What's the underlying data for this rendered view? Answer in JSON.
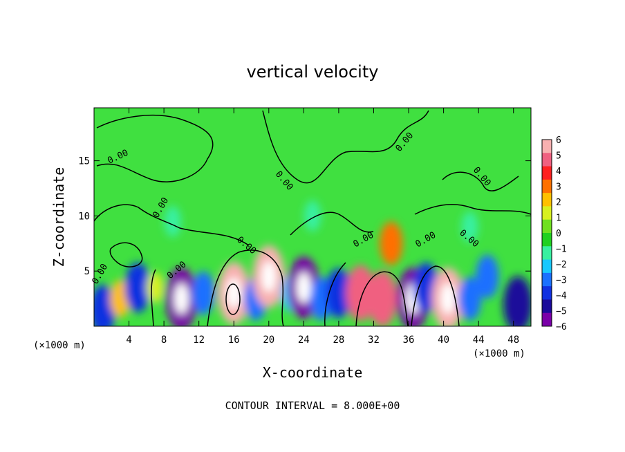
{
  "chart_data": {
    "type": "heatmap",
    "title": "vertical velocity",
    "xlabel": "X-coordinate",
    "ylabel": "Z-coordinate",
    "x_unit_left": "(×1000 m)",
    "x_unit_right": "(×1000 m)",
    "xlim": [
      0,
      50
    ],
    "ylim": [
      0,
      19.8
    ],
    "x_ticks": [
      "4",
      "8",
      "12",
      "16",
      "20",
      "24",
      "28",
      "32",
      "36",
      "40",
      "44",
      "48"
    ],
    "y_ticks": [
      "5",
      "10",
      "15"
    ],
    "colorbar": {
      "ticks": [
        "6",
        "5",
        "4",
        "3",
        "2",
        "1",
        "0",
        "−1",
        "−2",
        "−3",
        "−4",
        "−5",
        "−6"
      ],
      "range": [
        -6,
        6
      ],
      "colors": [
        "#7a00a8",
        "#1a0a9a",
        "#1030e0",
        "#1a70ff",
        "#18c8ff",
        "#38f0a0",
        "#20d020",
        "#70e020",
        "#d8f020",
        "#ffc000",
        "#ff7000",
        "#ff2020",
        "#f06080",
        "#f8b0b0"
      ]
    },
    "contour_level_label": "0.00",
    "contour_interval_text": "CONTOUR INTERVAL = 8.000E+00",
    "cells": [
      {
        "x": 1,
        "z": 1.5,
        "w": -4
      },
      {
        "x": 3,
        "z": 2.5,
        "w": 2
      },
      {
        "x": 5,
        "z": 3.5,
        "w": -4
      },
      {
        "x": 7,
        "z": 3.5,
        "w": 1
      },
      {
        "x": 10,
        "z": 2.5,
        "w": -6
      },
      {
        "x": 12.5,
        "z": 3,
        "w": -3
      },
      {
        "x": 16,
        "z": 3,
        "w": 6
      },
      {
        "x": 18.5,
        "z": 2.5,
        "w": -3
      },
      {
        "x": 20,
        "z": 4.5,
        "w": 6
      },
      {
        "x": 22.5,
        "z": 3,
        "w": -2
      },
      {
        "x": 24,
        "z": 3.5,
        "w": -6
      },
      {
        "x": 26,
        "z": 2.5,
        "w": -3
      },
      {
        "x": 28,
        "z": 3,
        "w": -4
      },
      {
        "x": 30.5,
        "z": 3,
        "w": 5
      },
      {
        "x": 33,
        "z": 2.5,
        "w": 5
      },
      {
        "x": 34,
        "z": 7.5,
        "w": 3
      },
      {
        "x": 36.5,
        "z": 2.5,
        "w": -6
      },
      {
        "x": 38,
        "z": 3.5,
        "w": -4
      },
      {
        "x": 40.5,
        "z": 2.5,
        "w": 6
      },
      {
        "x": 43,
        "z": 2.5,
        "w": -3
      },
      {
        "x": 45,
        "z": 4.5,
        "w": -3
      },
      {
        "x": 48.5,
        "z": 2,
        "w": -5
      },
      {
        "x": 9,
        "z": 9.5,
        "w": -1
      },
      {
        "x": 25,
        "z": 10,
        "w": -1
      },
      {
        "x": 43,
        "z": 9,
        "w": -1
      }
    ]
  }
}
